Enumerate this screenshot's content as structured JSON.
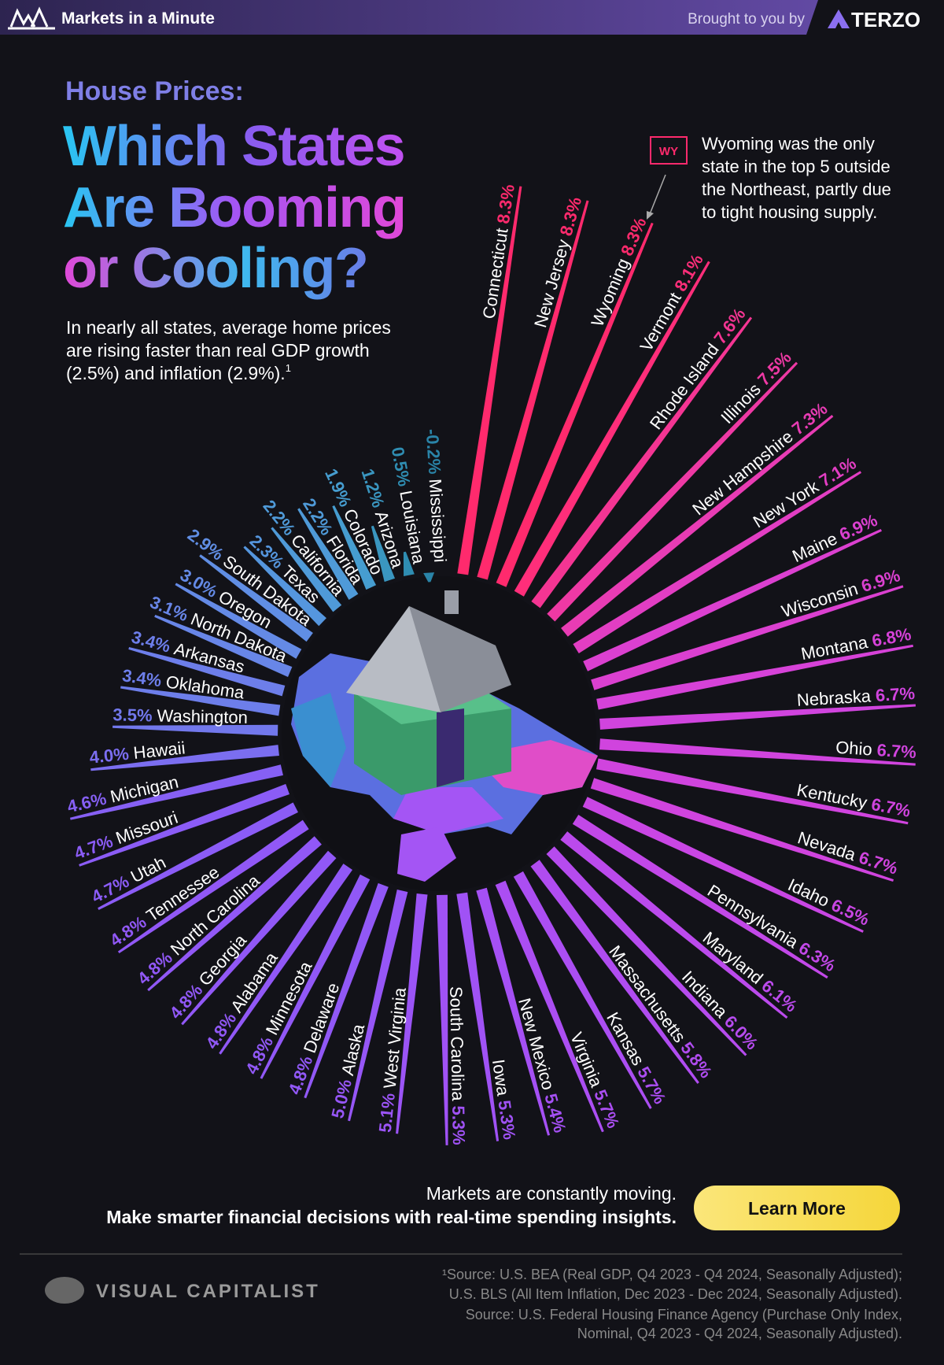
{
  "header": {
    "brand": "Markets in a Minute",
    "sponsor_text": "Brought to you by",
    "sponsor": "TERZO"
  },
  "chart_data": {
    "type": "radial_bar",
    "supertitle": "House Prices:",
    "title_lines": [
      "Which States",
      "Are Booming",
      "or Cooling?"
    ],
    "subtitle_lines": [
      "In nearly all states, average home prices",
      "are rising faster than real GDP growth",
      "(2.5%) and inflation (2.9%)."
    ],
    "subtitle_ref": "1",
    "annotation": {
      "tag": "WY",
      "lines": [
        "Wyoming was the only",
        "state in the top 5 outside",
        "the Northeast, partly due",
        "to tight housing supply."
      ]
    },
    "categories": [
      "Connecticut",
      "New Jersey",
      "Wyoming",
      "Vermont",
      "Rhode Island",
      "Illinois",
      "New Hampshire",
      "New York",
      "Maine",
      "Wisconsin",
      "Montana",
      "Nebraska",
      "Ohio",
      "Kentucky",
      "Nevada",
      "Idaho",
      "Pennsylvania",
      "Maryland",
      "Indiana",
      "Massachusetts",
      "Kansas",
      "Virginia",
      "New Mexico",
      "Iowa",
      "South Carolina",
      "West Virginia",
      "Alaska",
      "Delaware",
      "Minnesota",
      "Alabama",
      "Georgia",
      "North Carolina",
      "Tennessee",
      "Utah",
      "Missouri",
      "Michigan",
      "Hawaii",
      "Washington",
      "Oklahoma",
      "Arkansas",
      "North Dakota",
      "Oregon",
      "South Dakota",
      "Texas",
      "California",
      "Florida",
      "Colorado",
      "Arizona",
      "Louisiana",
      "Mississippi"
    ],
    "values": [
      8.3,
      8.3,
      8.3,
      8.1,
      7.6,
      7.5,
      7.3,
      7.1,
      6.9,
      6.9,
      6.8,
      6.7,
      6.7,
      6.7,
      6.7,
      6.5,
      6.3,
      6.1,
      6.0,
      5.8,
      5.7,
      5.7,
      5.4,
      5.3,
      5.3,
      5.1,
      5.0,
      4.8,
      4.8,
      4.8,
      4.8,
      4.8,
      4.8,
      4.7,
      4.7,
      4.6,
      4.0,
      3.5,
      3.4,
      3.4,
      3.1,
      3.0,
      2.9,
      2.3,
      2.2,
      2.2,
      1.9,
      1.2,
      0.5,
      -0.2
    ],
    "value_labels": [
      "8.3%",
      "8.3%",
      "8.3%",
      "8.1%",
      "7.6%",
      "7.5%",
      "7.3%",
      "7.1%",
      "6.9%",
      "6.9%",
      "6.8%",
      "6.7%",
      "6.7%",
      "6.7%",
      "6.7%",
      "6.5%",
      "6.3%",
      "6.1%",
      "6.0%",
      "5.8%",
      "5.7%",
      "5.7%",
      "5.4%",
      "5.3%",
      "5.3%",
      "5.1%",
      "5.0%",
      "4.8%",
      "4.8%",
      "4.8%",
      "4.8%",
      "4.8%",
      "4.8%",
      "4.7%",
      "4.7%",
      "4.6%",
      "4.0%",
      "3.5%",
      "3.4%",
      "3.4%",
      "3.1%",
      "3.0%",
      "2.9%",
      "2.3%",
      "2.2%",
      "2.2%",
      "1.9%",
      "1.2%",
      "0.5%",
      "-0.2%"
    ],
    "colors": [
      "#ff2a6d",
      "#ff2a6d",
      "#ff2a6d",
      "#ff2e7a",
      "#f43593",
      "#ee39a4",
      "#e83cb4",
      "#e23ec3",
      "#db40d0",
      "#db40d0",
      "#d642d8",
      "#d044de",
      "#d044de",
      "#d044de",
      "#d044de",
      "#c946e4",
      "#c248e8",
      "#bb4aec",
      "#b64bee",
      "#b04cf0",
      "#ab4ef2",
      "#ab4ef2",
      "#a550f4",
      "#a052f5",
      "#a052f5",
      "#9b54f6",
      "#9656f6",
      "#9158f6",
      "#9158f6",
      "#9158f6",
      "#9158f6",
      "#9158f6",
      "#9158f6",
      "#8b5cf6",
      "#8b5cf6",
      "#8660f4",
      "#7b6ef0",
      "#7278ec",
      "#6d7eea",
      "#6d7eea",
      "#6886e8",
      "#648ae6",
      "#608ee4",
      "#5596de",
      "#4f9ad8",
      "#4f9ad8",
      "#469dd0",
      "#3a96c0",
      "#2f8db2",
      "#2a84a8"
    ]
  },
  "cta": {
    "line1": "Markets are constantly moving.",
    "line2": "Make smarter financial decisions with real-time spending insights.",
    "button": "Learn More"
  },
  "footer": {
    "brand": "VISUAL CAPITALIST",
    "sources": [
      "¹Source: U.S. BEA (Real GDP, Q4 2023 - Q4 2024, Seasonally Adjusted);",
      "U.S. BLS (All Item Inflation, Dec 2023 - Dec 2024, Seasonally Adjusted).",
      "Source: U.S. Federal Housing Finance Agency (Purchase Only Index,",
      "Nominal, Q4 2023 - Q4 2024, Seasonally Adjusted)."
    ]
  }
}
